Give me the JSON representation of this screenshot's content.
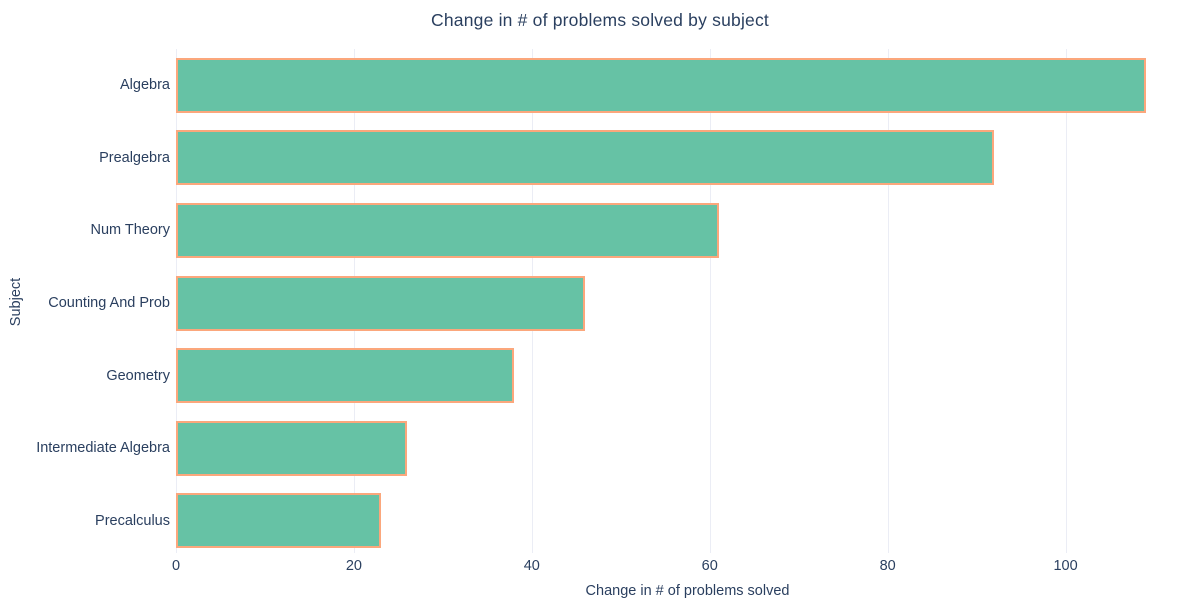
{
  "chart_data": {
    "type": "bar",
    "orientation": "horizontal",
    "title": "Change in # of problems solved by subject",
    "xlabel": "Change in # of problems solved",
    "ylabel": "Subject",
    "categories": [
      "Algebra",
      "Prealgebra",
      "Num Theory",
      "Counting And Prob",
      "Geometry",
      "Intermediate Algebra",
      "Precalculus"
    ],
    "values": [
      109,
      92,
      61,
      46,
      38,
      26,
      23
    ],
    "xticks": [
      0,
      20,
      40,
      60,
      80,
      100
    ],
    "xlim": [
      0,
      115
    ],
    "grid": true,
    "legend": false,
    "colors": {
      "bar_fill": "#66c2a5",
      "bar_border": "#fba77c",
      "text": "#2a3f5f",
      "gridline": "#ebedf5",
      "background": "#ffffff"
    }
  }
}
